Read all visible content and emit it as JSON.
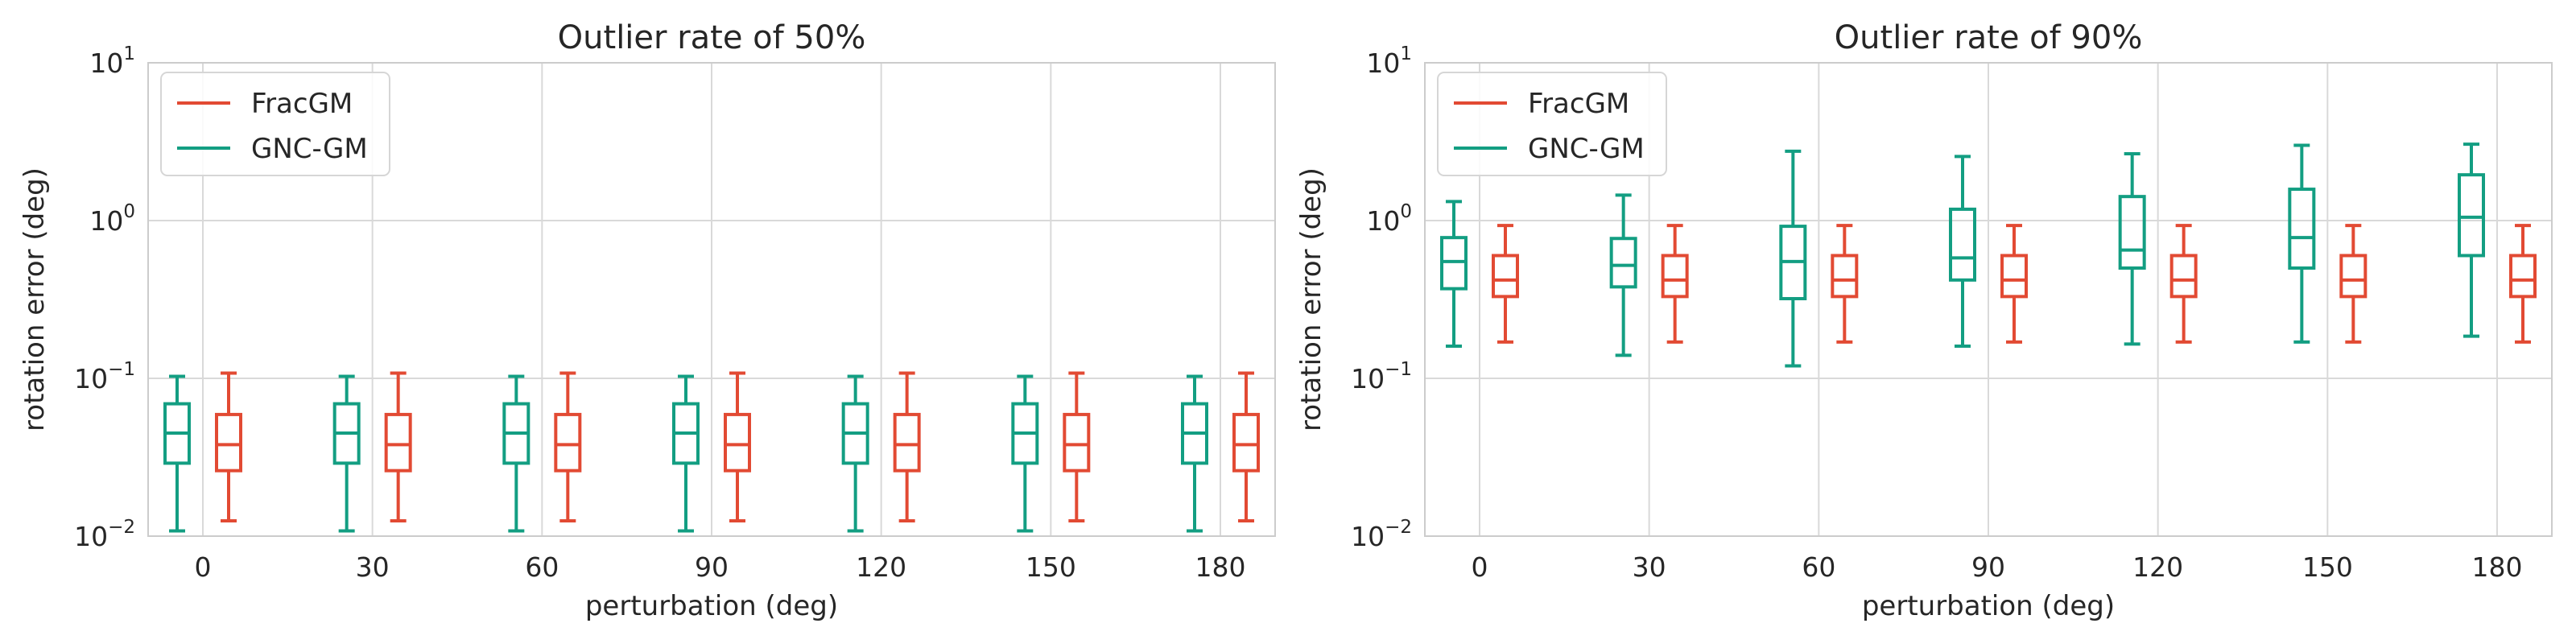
{
  "chart_data": [
    {
      "type": "box",
      "title": "Outlier rate of 50%",
      "xlabel": "perturbation (deg)",
      "ylabel": "rotation error (deg)",
      "yscale": "log",
      "ylim": [
        0.01,
        10
      ],
      "yticks": [
        {
          "value": 0.01,
          "base": "10",
          "exp": "−2"
        },
        {
          "value": 0.1,
          "base": "10",
          "exp": "−1"
        },
        {
          "value": 1,
          "base": "10",
          "exp": "0"
        },
        {
          "value": 10,
          "base": "10",
          "exp": "1"
        }
      ],
      "categories": [
        "0",
        "30",
        "60",
        "90",
        "120",
        "150",
        "180"
      ],
      "grid": true,
      "legend": "top-left",
      "series": [
        {
          "name": "GNC-GM",
          "color": "#139e82",
          "boxes": [
            {
              "whislo": 0.0108,
              "q1": 0.029,
              "med": 0.045,
              "q3": 0.069,
              "whishi": 0.103
            },
            {
              "whislo": 0.0108,
              "q1": 0.029,
              "med": 0.045,
              "q3": 0.069,
              "whishi": 0.103
            },
            {
              "whislo": 0.0108,
              "q1": 0.029,
              "med": 0.045,
              "q3": 0.069,
              "whishi": 0.103
            },
            {
              "whislo": 0.0108,
              "q1": 0.029,
              "med": 0.045,
              "q3": 0.069,
              "whishi": 0.103
            },
            {
              "whislo": 0.0108,
              "q1": 0.029,
              "med": 0.045,
              "q3": 0.069,
              "whishi": 0.103
            },
            {
              "whislo": 0.0108,
              "q1": 0.029,
              "med": 0.045,
              "q3": 0.069,
              "whishi": 0.103
            },
            {
              "whislo": 0.0108,
              "q1": 0.029,
              "med": 0.045,
              "q3": 0.069,
              "whishi": 0.103
            }
          ]
        },
        {
          "name": "FracGM",
          "color": "#e24a33",
          "boxes": [
            {
              "whislo": 0.0125,
              "q1": 0.026,
              "med": 0.038,
              "q3": 0.059,
              "whishi": 0.108
            },
            {
              "whislo": 0.0125,
              "q1": 0.026,
              "med": 0.038,
              "q3": 0.059,
              "whishi": 0.108
            },
            {
              "whislo": 0.0125,
              "q1": 0.026,
              "med": 0.038,
              "q3": 0.059,
              "whishi": 0.108
            },
            {
              "whislo": 0.0125,
              "q1": 0.026,
              "med": 0.038,
              "q3": 0.059,
              "whishi": 0.108
            },
            {
              "whislo": 0.0125,
              "q1": 0.026,
              "med": 0.038,
              "q3": 0.059,
              "whishi": 0.108
            },
            {
              "whislo": 0.0125,
              "q1": 0.026,
              "med": 0.038,
              "q3": 0.059,
              "whishi": 0.108
            },
            {
              "whislo": 0.0125,
              "q1": 0.026,
              "med": 0.038,
              "q3": 0.059,
              "whishi": 0.108
            }
          ]
        }
      ],
      "legend_items": [
        {
          "name": "FracGM",
          "color": "#e24a33"
        },
        {
          "name": "GNC-GM",
          "color": "#139e82"
        }
      ]
    },
    {
      "type": "box",
      "title": "Outlier rate of 90%",
      "xlabel": "perturbation (deg)",
      "ylabel": "rotation error (deg)",
      "yscale": "log",
      "ylim": [
        0.01,
        10
      ],
      "yticks": [
        {
          "value": 0.01,
          "base": "10",
          "exp": "−2"
        },
        {
          "value": 0.1,
          "base": "10",
          "exp": "−1"
        },
        {
          "value": 1,
          "base": "10",
          "exp": "0"
        },
        {
          "value": 10,
          "base": "10",
          "exp": "1"
        }
      ],
      "categories": [
        "0",
        "30",
        "60",
        "90",
        "120",
        "150",
        "180"
      ],
      "grid": true,
      "legend": "top-left",
      "series": [
        {
          "name": "GNC-GM",
          "color": "#139e82",
          "boxes": [
            {
              "whislo": 0.16,
              "q1": 0.37,
              "med": 0.55,
              "q3": 0.78,
              "whishi": 1.32
            },
            {
              "whislo": 0.14,
              "q1": 0.38,
              "med": 0.52,
              "q3": 0.77,
              "whishi": 1.45
            },
            {
              "whislo": 0.12,
              "q1": 0.32,
              "med": 0.55,
              "q3": 0.92,
              "whishi": 2.75
            },
            {
              "whislo": 0.16,
              "q1": 0.42,
              "med": 0.58,
              "q3": 1.18,
              "whishi": 2.55
            },
            {
              "whislo": 0.165,
              "q1": 0.5,
              "med": 0.65,
              "q3": 1.42,
              "whishi": 2.65
            },
            {
              "whislo": 0.17,
              "q1": 0.5,
              "med": 0.78,
              "q3": 1.58,
              "whishi": 3.0
            },
            {
              "whislo": 0.185,
              "q1": 0.6,
              "med": 1.05,
              "q3": 1.95,
              "whishi": 3.05
            }
          ]
        },
        {
          "name": "FracGM",
          "color": "#e24a33",
          "boxes": [
            {
              "whislo": 0.17,
              "q1": 0.33,
              "med": 0.42,
              "q3": 0.6,
              "whishi": 0.93
            },
            {
              "whislo": 0.17,
              "q1": 0.33,
              "med": 0.42,
              "q3": 0.6,
              "whishi": 0.93
            },
            {
              "whislo": 0.17,
              "q1": 0.33,
              "med": 0.42,
              "q3": 0.6,
              "whishi": 0.93
            },
            {
              "whislo": 0.17,
              "q1": 0.33,
              "med": 0.42,
              "q3": 0.6,
              "whishi": 0.93
            },
            {
              "whislo": 0.17,
              "q1": 0.33,
              "med": 0.42,
              "q3": 0.6,
              "whishi": 0.93
            },
            {
              "whislo": 0.17,
              "q1": 0.33,
              "med": 0.42,
              "q3": 0.6,
              "whishi": 0.93
            },
            {
              "whislo": 0.17,
              "q1": 0.33,
              "med": 0.42,
              "q3": 0.6,
              "whishi": 0.93
            }
          ]
        }
      ],
      "legend_items": [
        {
          "name": "FracGM",
          "color": "#e24a33"
        },
        {
          "name": "GNC-GM",
          "color": "#139e82"
        }
      ]
    }
  ]
}
